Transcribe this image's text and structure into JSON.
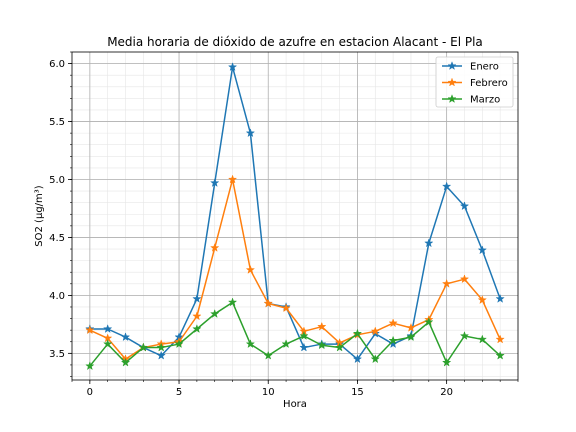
{
  "chart_data": {
    "type": "line",
    "title": "Media horaria de dióxido de azufre en estacion Alacant - El Pla",
    "xlabel": "Hora",
    "ylabel": "SO2 (µg/m³)",
    "xlim": [
      -1,
      24
    ],
    "ylim": [
      3.27,
      6.1
    ],
    "x_major_ticks": [
      0,
      5,
      10,
      15,
      20
    ],
    "x_tick_labels": [
      "0",
      "5",
      "10",
      "15",
      "20"
    ],
    "y_major_ticks": [
      3.5,
      4.0,
      4.5,
      5.0,
      5.5,
      6.0
    ],
    "y_tick_labels": [
      "3.5",
      "4.0",
      "4.5",
      "5.0",
      "5.5",
      "6.0"
    ],
    "grid": "major and minor",
    "legend_position": "top-right",
    "x": [
      0,
      1,
      2,
      3,
      4,
      5,
      6,
      7,
      8,
      9,
      10,
      11,
      12,
      13,
      14,
      15,
      16,
      17,
      18,
      19,
      20,
      21,
      22,
      23
    ],
    "series": [
      {
        "name": "Enero",
        "color": "#1f77b4",
        "marker": "star",
        "values": [
          3.71,
          3.71,
          3.64,
          3.55,
          3.48,
          3.64,
          3.97,
          4.97,
          5.97,
          5.4,
          3.93,
          3.9,
          3.55,
          3.58,
          3.58,
          3.45,
          3.67,
          3.58,
          3.65,
          4.45,
          4.94,
          4.77,
          4.39,
          3.97
        ]
      },
      {
        "name": "Febrero",
        "color": "#ff7f0e",
        "marker": "star",
        "values": [
          3.7,
          3.63,
          3.45,
          3.55,
          3.58,
          3.6,
          3.82,
          4.41,
          5.0,
          4.22,
          3.93,
          3.89,
          3.69,
          3.73,
          3.59,
          3.66,
          3.69,
          3.76,
          3.72,
          3.79,
          4.1,
          4.14,
          3.96,
          3.62
        ]
      },
      {
        "name": "Marzo",
        "color": "#2ca02c",
        "marker": "star",
        "values": [
          3.39,
          3.58,
          3.42,
          3.55,
          3.55,
          3.58,
          3.71,
          3.84,
          3.94,
          3.58,
          3.48,
          3.58,
          3.65,
          3.57,
          3.55,
          3.67,
          3.45,
          3.61,
          3.64,
          3.77,
          3.42,
          3.65,
          3.62,
          3.48
        ]
      }
    ]
  }
}
